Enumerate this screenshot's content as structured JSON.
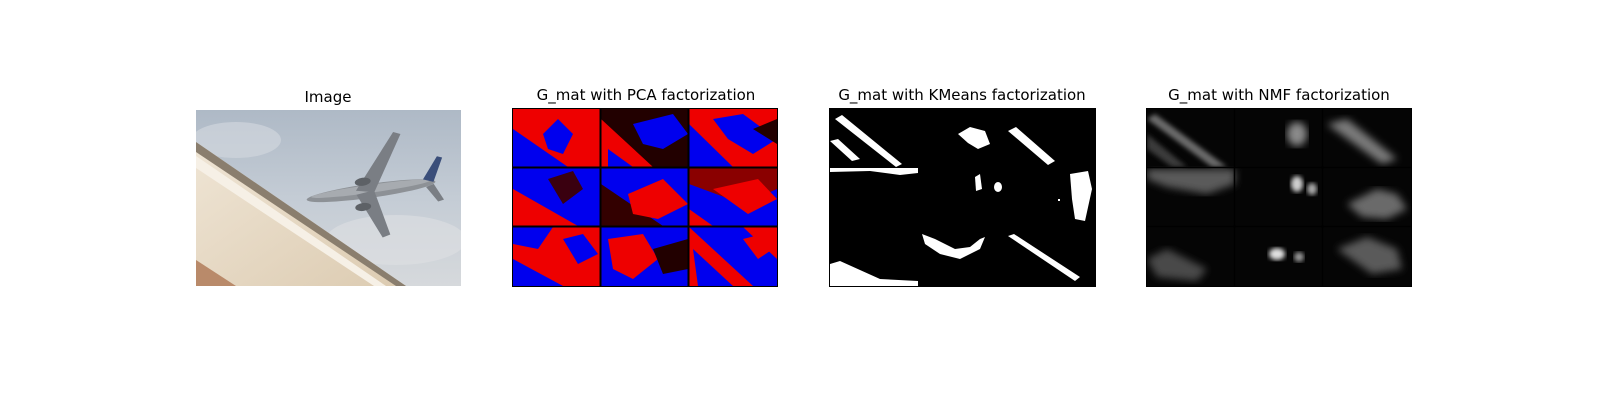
{
  "figure": {
    "panels": [
      {
        "title": "Image",
        "kind": "photo",
        "description": "airplane"
      },
      {
        "title": "G_mat with PCA factorization",
        "kind": "pca-grid"
      },
      {
        "title": "G_mat with KMeans factorization",
        "kind": "kmeans-grid"
      },
      {
        "title": "G_mat with NMF factorization",
        "kind": "nmf-grid"
      }
    ]
  },
  "colors": {
    "pca_red": "#ff0000",
    "pca_blue": "#0000ff",
    "pca_dark": "#2a0000",
    "kmeans_fg": "#ffffff",
    "kmeans_bg": "#000000",
    "nmf_bg": "#0a0a0a",
    "sky_top": "#b8c3cf",
    "sky_bottom": "#d4d8dd",
    "building": "#e8dcc8"
  }
}
